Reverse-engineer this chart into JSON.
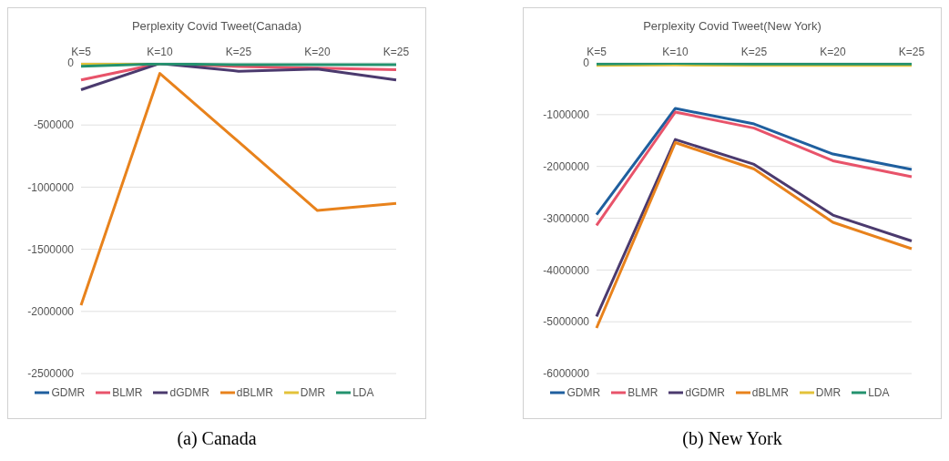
{
  "chart_data": [
    {
      "type": "line",
      "title": "Perplexity Covid Tweet(Canada)",
      "categories": [
        "K=5",
        "K=10",
        "K=25",
        "K=20",
        "K=25"
      ],
      "ylim": [
        -2500000,
        0
      ],
      "yticks": [
        -2500000,
        -2000000,
        -1500000,
        -1000000,
        -500000,
        0
      ],
      "grid": "y",
      "legend": "bottom",
      "marker": "none",
      "line_style": "solid",
      "annotations": [
        "(a) Canada"
      ],
      "series": [
        {
          "name": "GDMR",
          "color": "#1f5f9e",
          "values": [
            null,
            null,
            null,
            null,
            null
          ]
        },
        {
          "name": "BLMR",
          "color": "#e8536a",
          "values": [
            -137000,
            -5000,
            -30000,
            -42000,
            -55000
          ]
        },
        {
          "name": "dGDMR",
          "color": "#4b3a6e",
          "values": [
            -216000,
            -5000,
            -67000,
            -50000,
            -137000
          ]
        },
        {
          "name": "dBLMR",
          "color": "#e8821c",
          "values": [
            -1950000,
            -85000,
            -635000,
            -1188000,
            -1130000
          ]
        },
        {
          "name": "DMR",
          "color": "#e3c23a",
          "values": [
            -10000,
            -5000,
            null,
            null,
            null
          ]
        },
        {
          "name": "LDA",
          "color": "#23926e",
          "values": [
            -28000,
            -8000,
            -15000,
            -15000,
            -15000
          ]
        }
      ]
    },
    {
      "type": "line",
      "title": "Perplexity Covid Tweet(New York)",
      "categories": [
        "K=5",
        "K=10",
        "K=25",
        "K=20",
        "K=25"
      ],
      "ylim": [
        -6000000,
        0
      ],
      "yticks": [
        -6000000,
        -5000000,
        -4000000,
        -3000000,
        -2000000,
        -1000000,
        0
      ],
      "grid": "y",
      "legend": "bottom",
      "marker": "none",
      "line_style": "solid",
      "annotations": [
        "(b) New York"
      ],
      "series": [
        {
          "name": "GDMR",
          "color": "#1f5f9e",
          "values": [
            -2930000,
            -880000,
            -1180000,
            -1760000,
            -2060000
          ]
        },
        {
          "name": "BLMR",
          "color": "#e8536a",
          "values": [
            -3140000,
            -950000,
            -1260000,
            -1890000,
            -2200000
          ]
        },
        {
          "name": "dGDMR",
          "color": "#4b3a6e",
          "values": [
            -4900000,
            -1480000,
            -1960000,
            -2940000,
            -3440000
          ]
        },
        {
          "name": "dBLMR",
          "color": "#e8821c",
          "values": [
            -5120000,
            -1540000,
            -2050000,
            -3080000,
            -3590000
          ]
        },
        {
          "name": "DMR",
          "color": "#e3c23a",
          "values": [
            -50000,
            -40000,
            -50000,
            -50000,
            -50000
          ]
        },
        {
          "name": "LDA",
          "color": "#23926e",
          "values": [
            -20000,
            -10000,
            -20000,
            -20000,
            -20000
          ]
        }
      ]
    }
  ]
}
